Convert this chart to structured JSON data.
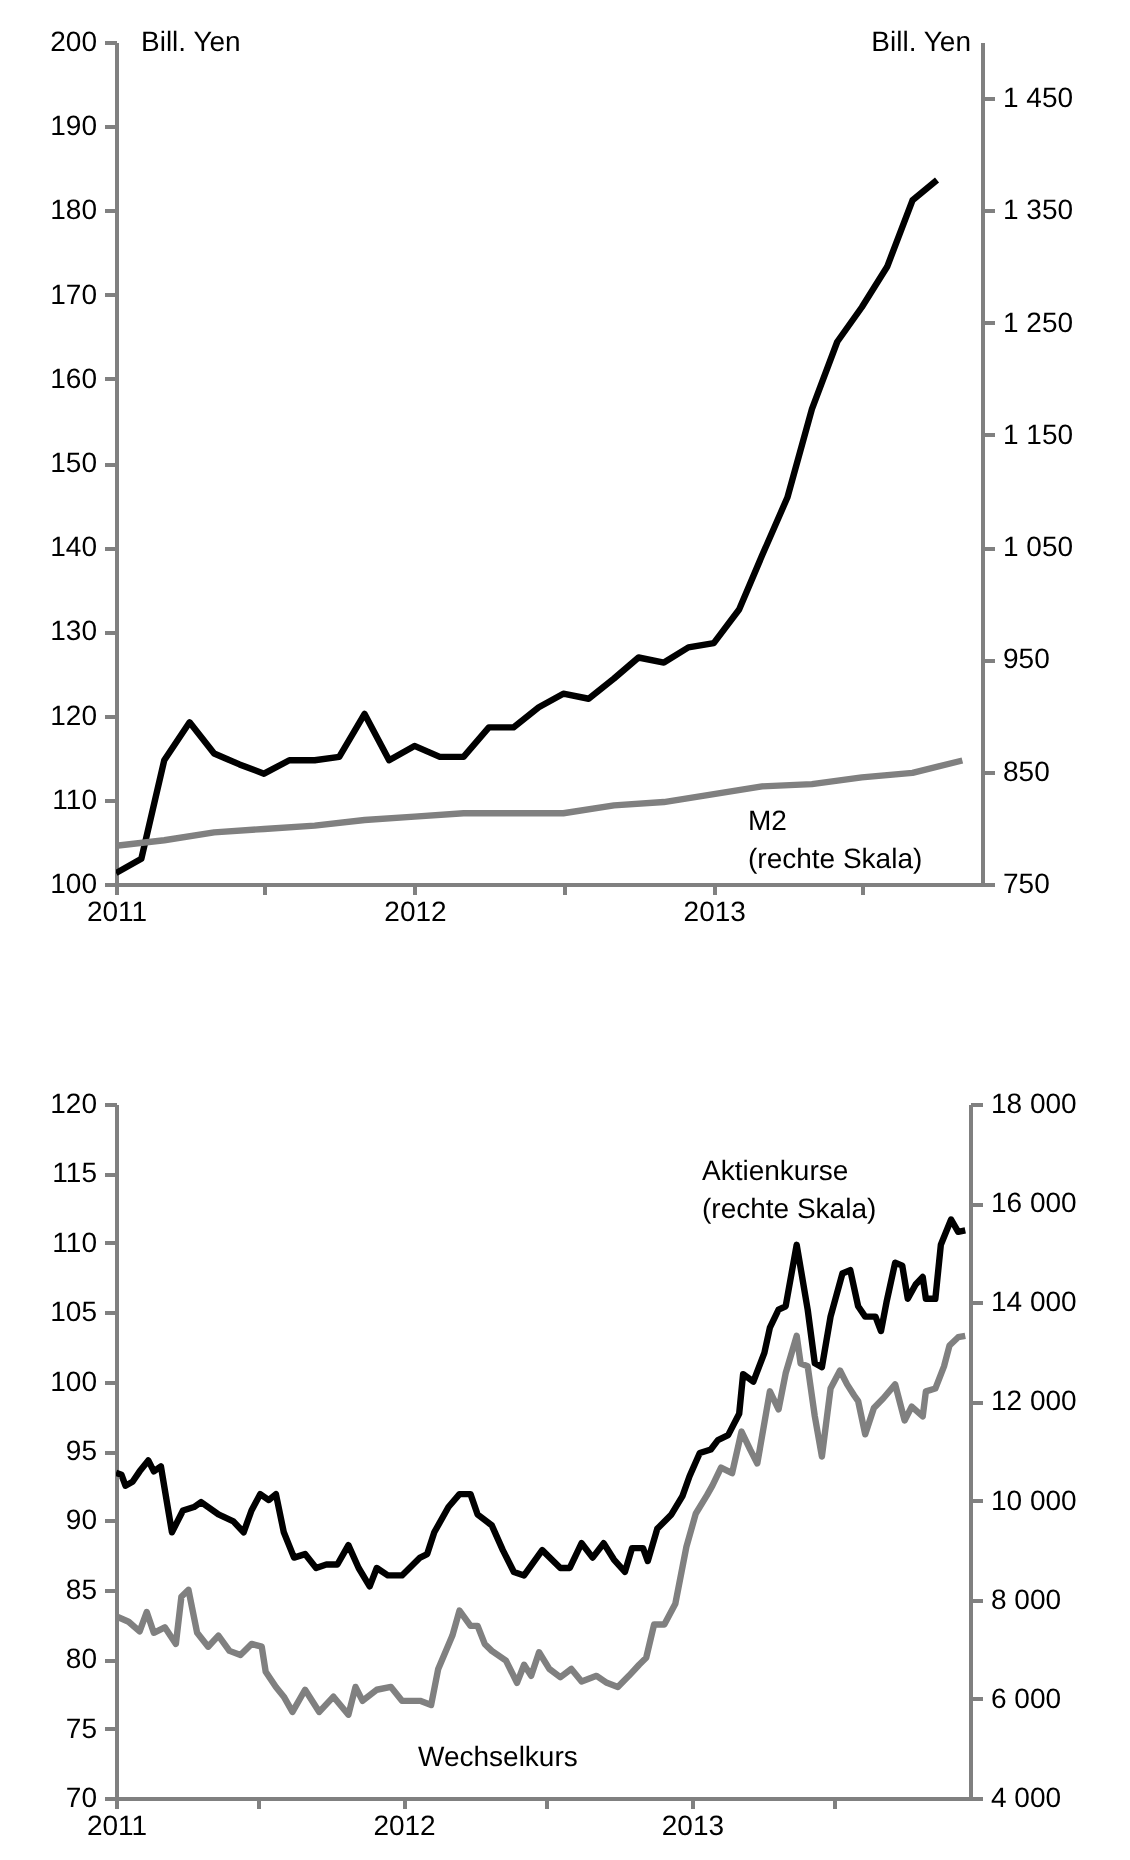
{
  "chart_data": [
    {
      "type": "line",
      "ylabel": "Bill. Yen",
      "y2label": "Bill. Yen",
      "xlim": [
        "2011-01-01",
        "2013-11-25"
      ],
      "xticks": [
        "2011",
        {
          "value": "2011-07",
          "label": null
        },
        "2012",
        {
          "value": "2012-07",
          "label": null
        },
        "2013",
        {
          "value": "2013-07",
          "label": null
        }
      ],
      "ylim": [
        100,
        200
      ],
      "yticks": [
        100,
        110,
        120,
        130,
        140,
        150,
        160,
        170,
        180,
        190,
        200
      ],
      "y2lim": [
        750,
        1500
      ],
      "y2ticks": [
        750,
        850,
        950,
        {
          "value": 1050,
          "label": "1 050"
        },
        {
          "value": 1150,
          "label": "1 150"
        },
        {
          "value": 1250,
          "label": "1 250"
        },
        {
          "value": 1350,
          "label": "1 350"
        },
        {
          "value": 1450,
          "label": "1 450"
        }
      ],
      "series": [
        {
          "color": "#000000",
          "x": [
            "2011-01",
            "2011-02",
            "2011-03",
            "2011-04",
            "2011-05",
            "2011-06",
            "2011-07",
            "2011-08",
            "2011-09",
            "2011-10",
            "2011-11",
            "2011-12",
            "2012-01",
            "2012-02",
            "2012-03",
            "2012-04",
            "2012-05",
            "2012-06",
            "2012-07",
            "2012-08",
            "2012-09",
            "2012-10",
            "2012-11",
            "2012-12",
            "2013-01",
            "2013-02",
            "2013-03",
            "2013-04",
            "2013-05",
            "2013-06",
            "2013-07",
            "2013-08",
            "2013-09",
            "2013-10"
          ],
          "values": [
            101.3,
            103,
            114.7,
            119.2,
            115.5,
            114.2,
            113.1,
            114.7,
            114.7,
            115.1,
            120.2,
            114.7,
            116.4,
            115.1,
            115.1,
            118.6,
            118.6,
            121,
            122.6,
            122,
            124.4,
            126.9,
            126.3,
            128.1,
            128.6,
            132.6,
            139,
            145.9,
            156.4,
            164.4,
            168.5,
            173.3,
            181.2,
            183.6
          ]
        },
        {
          "name": "M2 (rechte Skala)",
          "color": "#808080",
          "axis": "y2",
          "x": [
            "2011-01",
            "2011-03",
            "2011-05",
            "2011-07",
            "2011-09",
            "2011-11",
            "2012-01",
            "2012-03",
            "2012-05",
            "2012-07",
            "2012-09",
            "2012-11",
            "2013-01",
            "2013-03",
            "2013-05",
            "2013-07",
            "2013-09",
            "2013-11"
          ],
          "values": [
            784,
            789,
            796,
            799,
            802,
            807,
            810,
            813,
            813,
            813,
            820,
            823,
            830,
            837,
            839,
            845,
            849,
            860
          ]
        }
      ]
    },
    {
      "type": "line",
      "xlim": [
        "2011-01-01",
        "2013-12-20"
      ],
      "xticks": [
        "2011",
        {
          "value": "2011-07",
          "label": null
        },
        "2012",
        {
          "value": "2012-07",
          "label": null
        },
        "2013",
        {
          "value": "2013-07",
          "label": null
        }
      ],
      "ylim": [
        70,
        120
      ],
      "yticks": [
        70,
        75,
        80,
        85,
        90,
        95,
        100,
        105,
        110,
        115,
        120
      ],
      "y2lim": [
        4000,
        18000
      ],
      "y2ticks": [
        {
          "value": 4000,
          "label": "4 000"
        },
        {
          "value": 6000,
          "label": "6 000"
        },
        {
          "value": 8000,
          "label": "8 000"
        },
        {
          "value": 10000,
          "label": "10 000"
        },
        {
          "value": 12000,
          "label": "12 000"
        },
        {
          "value": 14000,
          "label": "14 000"
        },
        {
          "value": 16000,
          "label": "16 000"
        },
        {
          "value": 18000,
          "label": "18 000"
        }
      ],
      "series": [
        {
          "name": "Wechselkurs",
          "color": "#808080",
          "x": [
            "2011-01-01",
            "2011-01-17",
            "2011-01-31",
            "2011-02-09",
            "2011-02-18",
            "2011-03-04",
            "2011-03-18",
            "2011-03-25",
            "2011-04-03",
            "2011-04-14",
            "2011-04-28",
            "2011-05-11",
            "2011-05-25",
            "2011-06-08",
            "2011-06-22",
            "2011-07-05",
            "2011-07-10",
            "2011-07-23",
            "2011-08-02",
            "2011-08-13",
            "2011-08-29",
            "2011-09-16",
            "2011-10-04",
            "2011-10-23",
            "2011-11-01",
            "2011-11-10",
            "2011-11-28",
            "2011-12-16",
            "2011-12-30",
            "2012-01-22",
            "2012-02-05",
            "2012-02-14",
            "2012-03-03",
            "2012-03-12",
            "2012-03-26",
            "2012-04-04",
            "2012-04-13",
            "2012-04-22",
            "2012-05-10",
            "2012-05-24",
            "2012-06-02",
            "2012-06-11",
            "2012-06-21",
            "2012-07-04",
            "2012-07-18",
            "2012-08-01",
            "2012-08-14",
            "2012-09-02",
            "2012-09-15",
            "2012-09-29",
            "2012-10-13",
            "2012-10-26",
            "2012-11-04",
            "2012-11-14",
            "2012-11-27",
            "2012-12-11",
            "2012-12-25",
            "2013-01-06",
            "2013-01-20",
            "2013-01-27",
            "2013-02-07",
            "2013-02-21",
            "2013-03-05",
            "2013-03-16",
            "2013-03-25",
            "2013-04-10",
            "2013-04-21",
            "2013-04-30",
            "2013-05-14",
            "2013-05-19",
            "2013-05-28",
            "2013-06-06",
            "2013-06-15",
            "2013-06-26",
            "2013-07-08",
            "2013-07-17",
            "2013-07-26",
            "2013-07-31",
            "2013-08-09",
            "2013-08-20",
            "2013-09-01",
            "2013-09-16",
            "2013-09-28",
            "2013-10-07",
            "2013-10-21",
            "2013-10-25",
            "2013-11-06",
            "2013-11-17",
            "2013-11-24",
            "2013-12-05",
            "2013-12-14"
          ],
          "values": [
            83.1,
            82.7,
            82.0,
            83.4,
            81.9,
            82.3,
            81.1,
            84.5,
            85.0,
            81.9,
            80.9,
            81.7,
            80.6,
            80.3,
            81.1,
            80.9,
            79.1,
            78.0,
            77.3,
            76.2,
            77.8,
            76.2,
            77.3,
            76.0,
            78.0,
            77.0,
            77.8,
            78.0,
            77.0,
            77.0,
            76.7,
            79.3,
            81.7,
            83.5,
            82.4,
            82.4,
            81.1,
            80.6,
            79.9,
            78.3,
            79.6,
            78.8,
            80.5,
            79.3,
            78.7,
            79.3,
            78.4,
            78.8,
            78.3,
            78.0,
            78.8,
            79.6,
            80.1,
            82.5,
            82.5,
            84.0,
            88.1,
            90.5,
            91.8,
            92.5,
            93.8,
            93.4,
            96.4,
            95.1,
            94.1,
            99.3,
            98.0,
            100.6,
            103.3,
            101.3,
            101.1,
            97.5,
            94.6,
            99.5,
            100.8,
            99.8,
            99.0,
            98.6,
            96.2,
            98.1,
            98.8,
            99.8,
            97.2,
            98.2,
            97.5,
            99.3,
            99.5,
            101.1,
            102.6,
            103.2,
            103.3
          ]
        },
        {
          "name": "Aktienkurse (rechte Skala)",
          "color": "#000000",
          "axis": "y2",
          "x": [
            "2011-01-01",
            "2011-01-08",
            "2011-01-13",
            "2011-01-22",
            "2011-01-31",
            "2011-02-11",
            "2011-02-18",
            "2011-02-27",
            "2011-03-13",
            "2011-03-27",
            "2011-04-10",
            "2011-04-19",
            "2011-04-28",
            "2011-05-11",
            "2011-05-30",
            "2011-06-12",
            "2011-06-22",
            "2011-07-03",
            "2011-07-14",
            "2011-07-23",
            "2011-08-02",
            "2011-08-15",
            "2011-08-29",
            "2011-09-12",
            "2011-09-25",
            "2011-10-09",
            "2011-10-23",
            "2011-11-05",
            "2011-11-19",
            "2011-11-28",
            "2011-12-12",
            "2011-12-30",
            "2012-01-22",
            "2012-01-31",
            "2012-02-09",
            "2012-02-27",
            "2012-03-12",
            "2012-03-26",
            "2012-04-04",
            "2012-04-22",
            "2012-05-06",
            "2012-05-20",
            "2012-06-02",
            "2012-06-25",
            "2012-07-18",
            "2012-07-30",
            "2012-08-14",
            "2012-08-28",
            "2012-09-11",
            "2012-09-24",
            "2012-10-08",
            "2012-10-17",
            "2012-10-31",
            "2012-11-06",
            "2012-11-18",
            "2012-12-06",
            "2012-12-20",
            "2012-12-29",
            "2013-01-11",
            "2013-01-25",
            "2013-02-03",
            "2013-02-16",
            "2013-03-02",
            "2013-03-07",
            "2013-03-20",
            "2013-04-03",
            "2013-04-10",
            "2013-04-21",
            "2013-04-30",
            "2013-05-14",
            "2013-05-28",
            "2013-06-06",
            "2013-06-15",
            "2013-06-26",
            "2013-07-11",
            "2013-07-21",
            "2013-07-31",
            "2013-08-09",
            "2013-08-22",
            "2013-08-29",
            "2013-09-05",
            "2013-09-16",
            "2013-09-25",
            "2013-10-02",
            "2013-10-12",
            "2013-10-21",
            "2013-10-25",
            "2013-11-06",
            "2013-11-13",
            "2013-11-26",
            "2013-12-05",
            "2013-12-14"
          ],
          "values": [
            10560,
            10520,
            10300,
            10380,
            10590,
            10810,
            10590,
            10690,
            9360,
            9800,
            9870,
            9970,
            9870,
            9720,
            9580,
            9360,
            9800,
            10130,
            10010,
            10130,
            9360,
            8850,
            8920,
            8640,
            8710,
            8710,
            9100,
            8640,
            8270,
            8640,
            8490,
            8490,
            8850,
            8920,
            9360,
            9870,
            10130,
            10130,
            9720,
            9500,
            9000,
            8560,
            8490,
            9000,
            8640,
            8640,
            9140,
            8850,
            9140,
            8810,
            8560,
            9040,
            9040,
            8780,
            9430,
            9720,
            10090,
            10490,
            10960,
            11030,
            11220,
            11320,
            11750,
            12550,
            12400,
            12980,
            13490,
            13850,
            13920,
            15160,
            13850,
            12770,
            12690,
            13710,
            14580,
            14650,
            13920,
            13710,
            13710,
            13420,
            14000,
            14800,
            14740,
            14070,
            14360,
            14510,
            14070,
            14070,
            15160,
            15670,
            15420,
            15450
          ]
        }
      ]
    }
  ]
}
